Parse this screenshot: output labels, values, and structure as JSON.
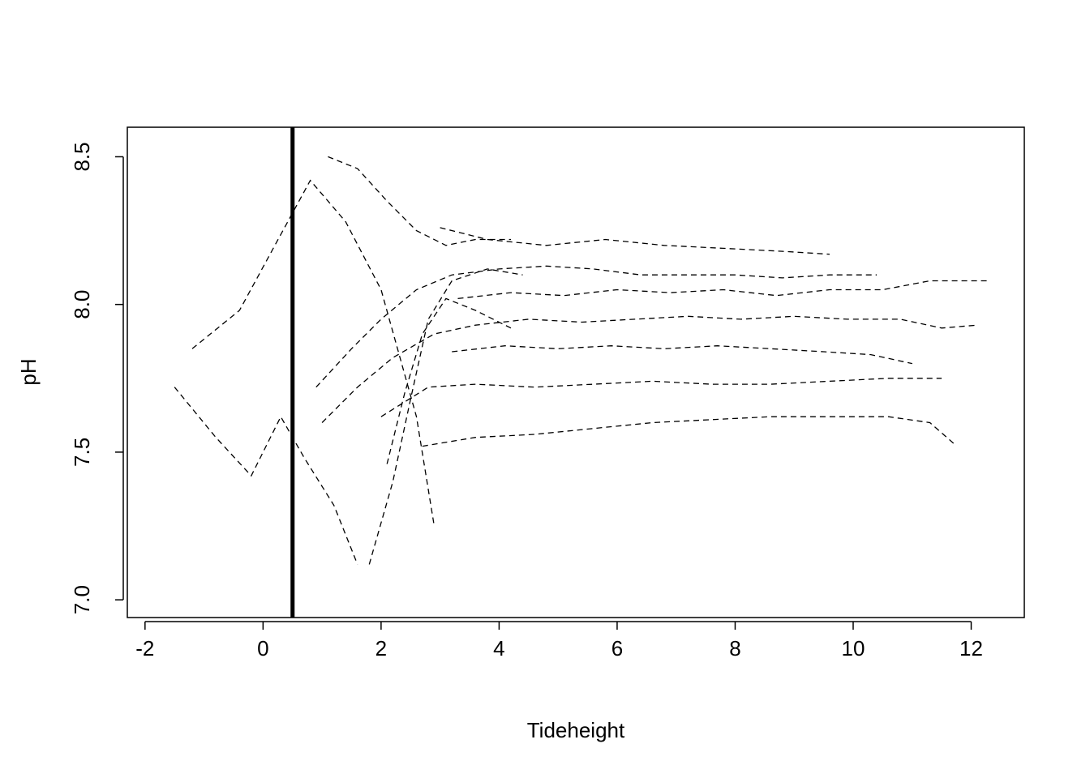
{
  "chart_data": {
    "type": "line",
    "title": "",
    "xlabel": "Tideheight",
    "ylabel": "pH",
    "xlim": [
      -2.3,
      12.9
    ],
    "ylim": [
      6.94,
      8.6
    ],
    "x_ticks": [
      "-2",
      "0",
      "2",
      "4",
      "6",
      "8",
      "10",
      "12"
    ],
    "y_ticks": [
      "7.0",
      "7.5",
      "8.0",
      "8.5"
    ],
    "grid": false,
    "legend": "none",
    "reference_lines": [
      {
        "type": "vline",
        "x": 0.5,
        "color": "#000000"
      }
    ],
    "series": [
      {
        "values": [
          [
            -1.5,
            7.72
          ],
          [
            -0.8,
            7.55
          ],
          [
            -0.2,
            7.42
          ],
          [
            0.3,
            7.62
          ],
          [
            0.7,
            7.48
          ],
          [
            1.2,
            7.32
          ],
          [
            1.6,
            7.12
          ]
        ]
      },
      {
        "values": [
          [
            -1.2,
            7.85
          ],
          [
            -0.4,
            7.98
          ],
          [
            0.2,
            8.2
          ],
          [
            0.8,
            8.42
          ],
          [
            1.4,
            8.28
          ],
          [
            2.0,
            8.05
          ],
          [
            2.6,
            7.62
          ],
          [
            2.9,
            7.25
          ]
        ]
      },
      {
        "values": [
          [
            1.8,
            7.12
          ],
          [
            2.2,
            7.4
          ],
          [
            2.5,
            7.68
          ],
          [
            2.8,
            7.95
          ],
          [
            3.2,
            8.08
          ],
          [
            3.8,
            8.12
          ],
          [
            4.4,
            8.1
          ]
        ]
      },
      {
        "values": [
          [
            2.1,
            7.46
          ],
          [
            2.4,
            7.7
          ],
          [
            2.7,
            7.9
          ],
          [
            3.1,
            8.02
          ],
          [
            3.6,
            7.98
          ],
          [
            4.2,
            7.92
          ]
        ]
      },
      {
        "values": [
          [
            0.9,
            7.72
          ],
          [
            1.5,
            7.85
          ],
          [
            2.0,
            7.95
          ],
          [
            2.6,
            8.05
          ],
          [
            3.2,
            8.1
          ],
          [
            4.0,
            8.12
          ],
          [
            4.8,
            8.13
          ],
          [
            5.6,
            8.12
          ],
          [
            6.4,
            8.1
          ],
          [
            7.2,
            8.1
          ],
          [
            8.0,
            8.1
          ],
          [
            8.8,
            8.09
          ],
          [
            9.6,
            8.1
          ],
          [
            10.4,
            8.1
          ]
        ]
      },
      {
        "values": [
          [
            1.0,
            7.6
          ],
          [
            1.6,
            7.72
          ],
          [
            2.2,
            7.82
          ],
          [
            2.9,
            7.9
          ],
          [
            3.6,
            7.93
          ],
          [
            4.5,
            7.95
          ],
          [
            5.4,
            7.94
          ],
          [
            6.3,
            7.95
          ],
          [
            7.2,
            7.96
          ],
          [
            8.1,
            7.95
          ],
          [
            9.0,
            7.96
          ],
          [
            9.9,
            7.95
          ],
          [
            10.8,
            7.95
          ],
          [
            11.5,
            7.92
          ],
          [
            12.1,
            7.93
          ]
        ]
      },
      {
        "values": [
          [
            2.0,
            7.62
          ],
          [
            2.8,
            7.72
          ],
          [
            3.6,
            7.73
          ],
          [
            4.6,
            7.72
          ],
          [
            5.6,
            7.73
          ],
          [
            6.6,
            7.74
          ],
          [
            7.6,
            7.73
          ],
          [
            8.6,
            7.73
          ],
          [
            9.6,
            7.74
          ],
          [
            10.6,
            7.75
          ],
          [
            11.5,
            7.75
          ]
        ]
      },
      {
        "values": [
          [
            2.7,
            7.52
          ],
          [
            3.6,
            7.55
          ],
          [
            4.6,
            7.56
          ],
          [
            5.6,
            7.58
          ],
          [
            6.6,
            7.6
          ],
          [
            7.6,
            7.61
          ],
          [
            8.6,
            7.62
          ],
          [
            9.6,
            7.62
          ],
          [
            10.6,
            7.62
          ],
          [
            11.3,
            7.6
          ],
          [
            11.7,
            7.53
          ]
        ]
      },
      {
        "values": [
          [
            3.0,
            8.26
          ],
          [
            3.8,
            8.22
          ],
          [
            4.8,
            8.2
          ],
          [
            5.8,
            8.22
          ],
          [
            6.8,
            8.2
          ],
          [
            7.8,
            8.19
          ],
          [
            8.8,
            8.18
          ],
          [
            9.6,
            8.17
          ]
        ]
      },
      {
        "values": [
          [
            1.1,
            8.5
          ],
          [
            1.6,
            8.46
          ],
          [
            2.1,
            8.35
          ],
          [
            2.6,
            8.25
          ],
          [
            3.1,
            8.2
          ],
          [
            3.6,
            8.22
          ],
          [
            4.2,
            8.22
          ]
        ]
      },
      {
        "values": [
          [
            3.3,
            8.02
          ],
          [
            4.2,
            8.04
          ],
          [
            5.1,
            8.03
          ],
          [
            6.0,
            8.05
          ],
          [
            6.9,
            8.04
          ],
          [
            7.8,
            8.05
          ],
          [
            8.7,
            8.03
          ],
          [
            9.6,
            8.05
          ],
          [
            10.5,
            8.05
          ],
          [
            11.3,
            8.08
          ],
          [
            12.3,
            8.08
          ]
        ]
      },
      {
        "values": [
          [
            3.2,
            7.84
          ],
          [
            4.1,
            7.86
          ],
          [
            5.0,
            7.85
          ],
          [
            5.9,
            7.86
          ],
          [
            6.8,
            7.85
          ],
          [
            7.7,
            7.86
          ],
          [
            8.6,
            7.85
          ],
          [
            9.5,
            7.84
          ],
          [
            10.3,
            7.83
          ],
          [
            11.0,
            7.8
          ]
        ]
      }
    ]
  }
}
